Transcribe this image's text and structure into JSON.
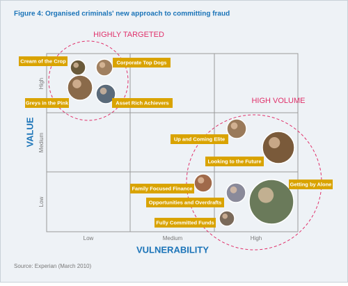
{
  "title": "Figure 4: Organised criminals' new approach to committing fraud",
  "zones": [
    "HIGHLY TARGETED",
    "HIGH VOLUME"
  ],
  "y_axis": {
    "title": "VALUE",
    "levels": [
      "Low",
      "Medium",
      "High"
    ]
  },
  "x_axis": {
    "title": "VULNERABILITY",
    "levels": [
      "Low",
      "Medium",
      "High"
    ]
  },
  "segments": [
    "Cream of the Crop",
    "Corporate Top Dogs",
    "Greys in the Pink",
    "Asset Rich Achievers",
    "Up and Coming Elite",
    "Looking to the Future",
    "Family Focused Finance",
    "Getting by Alone",
    "Opportunities and Overdrafts",
    "Fully Committed Funds"
  ],
  "source": "Source: Experian (March 2010)"
}
